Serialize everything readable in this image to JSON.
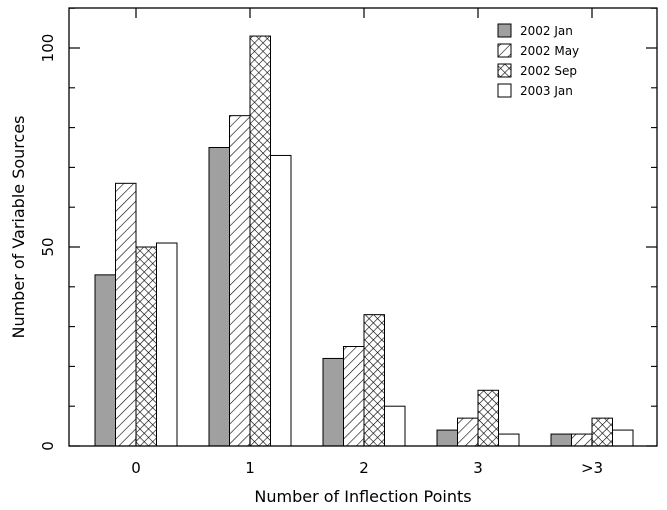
{
  "chart_data": {
    "type": "bar",
    "categories": [
      "0",
      "1",
      "2",
      "3",
      ">3"
    ],
    "series": [
      {
        "name": "2002 Jan",
        "values": [
          43,
          75,
          22,
          4,
          3
        ],
        "fill": "gray"
      },
      {
        "name": "2002 May",
        "values": [
          66,
          83,
          25,
          7,
          3
        ],
        "fill": "hatch"
      },
      {
        "name": "2002 Sep",
        "values": [
          50,
          103,
          33,
          14,
          7
        ],
        "fill": "crosshatch"
      },
      {
        "name": "2003 Jan",
        "values": [
          51,
          73,
          10,
          3,
          4
        ],
        "fill": "white"
      }
    ],
    "y_ticks": [
      "0",
      "50",
      "100"
    ],
    "xlabel": "Number of Inflection Points",
    "ylabel": "Number of Variable Sources",
    "ylim": [
      0,
      110
    ],
    "legend_position": "top-right",
    "colors": {
      "gray": "#a0a0a0",
      "white": "#ffffff",
      "stroke": "#000000"
    }
  }
}
